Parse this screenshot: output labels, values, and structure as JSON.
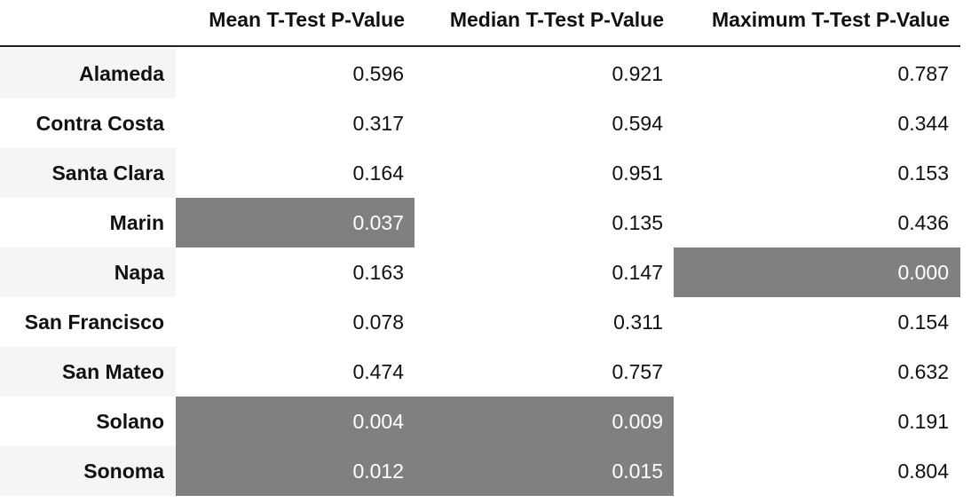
{
  "chart_data": {
    "type": "table",
    "columns": [
      "Mean T-Test P-Value",
      "Median T-Test P-Value",
      "Maximum T-Test P-Value"
    ],
    "rows": [
      {
        "label": "Alameda",
        "values": [
          "0.596",
          "0.921",
          "0.787"
        ],
        "highlight": [
          false,
          false,
          false
        ]
      },
      {
        "label": "Contra Costa",
        "values": [
          "0.317",
          "0.594",
          "0.344"
        ],
        "highlight": [
          false,
          false,
          false
        ]
      },
      {
        "label": "Santa Clara",
        "values": [
          "0.164",
          "0.951",
          "0.153"
        ],
        "highlight": [
          false,
          false,
          false
        ]
      },
      {
        "label": "Marin",
        "values": [
          "0.037",
          "0.135",
          "0.436"
        ],
        "highlight": [
          true,
          false,
          false
        ]
      },
      {
        "label": "Napa",
        "values": [
          "0.163",
          "0.147",
          "0.000"
        ],
        "highlight": [
          false,
          false,
          true
        ]
      },
      {
        "label": "San Francisco",
        "values": [
          "0.078",
          "0.311",
          "0.154"
        ],
        "highlight": [
          false,
          false,
          false
        ]
      },
      {
        "label": "San Mateo",
        "values": [
          "0.474",
          "0.757",
          "0.632"
        ],
        "highlight": [
          false,
          false,
          false
        ]
      },
      {
        "label": "Solano",
        "values": [
          "0.004",
          "0.009",
          "0.191"
        ],
        "highlight": [
          true,
          true,
          false
        ]
      },
      {
        "label": "Sonoma",
        "values": [
          "0.012",
          "0.015",
          "0.804"
        ],
        "highlight": [
          true,
          true,
          false
        ]
      }
    ],
    "colors": {
      "highlight_bg": "#808080",
      "highlight_text": "#ffffff",
      "stripe_bg": "#f5f5f5"
    }
  }
}
